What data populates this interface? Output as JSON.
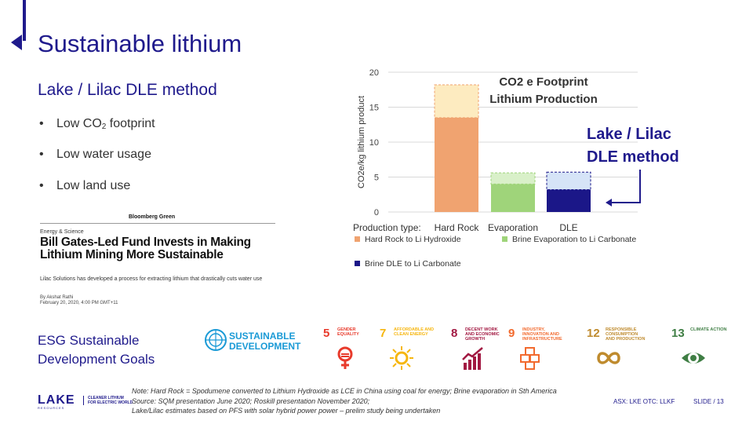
{
  "title": "Sustainable lithium",
  "subtitle": "Lake / Lilac DLE method",
  "bullets": [
    {
      "pre": "Low CO",
      "sub": "2",
      "post": " footprint"
    },
    {
      "pre": "Low water usage",
      "sub": "",
      "post": ""
    },
    {
      "pre": "Low land use",
      "sub": "",
      "post": ""
    }
  ],
  "clipping": {
    "source": "Bloomberg Green",
    "category": "Energy & Science",
    "headline": "Bill Gates-Led Fund Invests in Making Lithium Mining More Sustainable",
    "description": "Lilac Solutions has developed a process for extracting lithium that drastically cuts water use",
    "author": "By Akshat Rathi",
    "date": "February 20, 2020, 4:00 PM GMT+11"
  },
  "esg": {
    "line1": "ESG Sustainable",
    "line2": "Development Goals"
  },
  "sdg": {
    "text1": "SUSTAINABLE",
    "text2": "DEVELOPMENT",
    "goals": [
      {
        "num": "5",
        "label": "GENDER EQUALITY",
        "color": "#e83a2b",
        "icon": "gender-equality-icon"
      },
      {
        "num": "7",
        "label": "AFFORDABLE AND CLEAN ENERGY",
        "color": "#f6b60f",
        "icon": "sun-icon"
      },
      {
        "num": "8",
        "label": "DECENT WORK AND ECONOMIC GROWTH",
        "color": "#a21942",
        "icon": "growth-chart-icon"
      },
      {
        "num": "9",
        "label": "INDUSTRY, INNOVATION AND INFRASTRUCTURE",
        "color": "#f26a2e",
        "icon": "cubes-icon"
      },
      {
        "num": "12",
        "label": "RESPONSIBLE CONSUMPTION AND PRODUCTION",
        "color": "#bf8b2e",
        "icon": "infinity-icon"
      },
      {
        "num": "13",
        "label": "CLIMATE ACTION",
        "color": "#3f7e44",
        "icon": "globe-eye-icon"
      }
    ]
  },
  "chart_data": {
    "type": "bar",
    "title_line1": "CO2 e Footprint",
    "title_line2": "Lithium Production",
    "ylabel": "CO2e/kg  lithium product",
    "xlabel": "Production type:",
    "categories": [
      "Hard Rock",
      "Evaporation",
      "DLE"
    ],
    "ylim": [
      0,
      20
    ],
    "yticks": [
      0,
      5,
      10,
      15,
      20
    ],
    "series": [
      {
        "name": "Hard Rock to Li Hydroxide",
        "color": "#f0a370",
        "light": "#fdebc0",
        "base": 13.5,
        "top": 18.2
      },
      {
        "name": "Brine Evaporation to Li Carbonate",
        "color": "#9fd47a",
        "light": "#d9f0c9",
        "base": 4.0,
        "top": 5.6
      },
      {
        "name": "Brine DLE to Li Carbonate",
        "color": "#1b1788",
        "light": "#d6e4f7",
        "base": 3.2,
        "top": 5.7
      }
    ],
    "legend": "bottom",
    "grid": true
  },
  "callout": {
    "line1": "Lake / Lilac",
    "line2": "DLE method"
  },
  "footer": {
    "logo": "LAKE",
    "logo_sub": "RESOURCES",
    "tag1": "CLEANER LITHIUM",
    "tag2": "FOR ELECTRIC WORLD",
    "note1": "Note: Hard Rock = Spodumene converted to Lithium Hydroxide as LCE in China using coal for energy; Brine evaporation in Sth America",
    "note2": "Source: SQM presentation June 2020; Roskill presentation November 2020;",
    "note3": "Lake/Lilac estimates based on PFS with solar hybrid power power – prelim study being undertaken",
    "ticker": "ASX: LKE   OTC: LLKF",
    "slide": "SLIDE / 13"
  }
}
